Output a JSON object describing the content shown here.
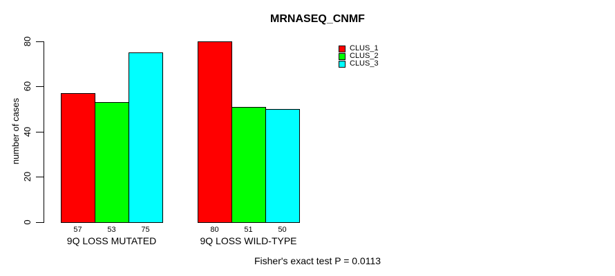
{
  "chart_data": {
    "type": "bar",
    "title": "MRNASEQ_CNMF",
    "xlabel": "Fisher's exact test P = 0.0113",
    "ylabel": "number of cases",
    "categories": [
      "9Q LOSS MUTATED",
      "9Q LOSS WILD-TYPE"
    ],
    "series": [
      {
        "name": "CLUS_1",
        "color": "#ff0000",
        "values": [
          57,
          80
        ]
      },
      {
        "name": "CLUS_2",
        "color": "#00ff00",
        "values": [
          53,
          51
        ]
      },
      {
        "name": "CLUS_3",
        "color": "#00ffff",
        "values": [
          75,
          50
        ]
      }
    ],
    "bar_value_labels": [
      [
        "57",
        "53",
        "75"
      ],
      [
        "80",
        "51",
        "50"
      ]
    ],
    "ylim": [
      0,
      80
    ],
    "yticks": [
      "0",
      "20",
      "40",
      "60",
      "80"
    ],
    "grid": false,
    "legend_position": "top-right",
    "legend_entries": [
      {
        "label": "CLUS_1",
        "color": "#ff0000"
      },
      {
        "label": "CLUS_2",
        "color": "#00ff00"
      },
      {
        "label": "CLUS_3",
        "color": "#00ffff"
      }
    ]
  }
}
